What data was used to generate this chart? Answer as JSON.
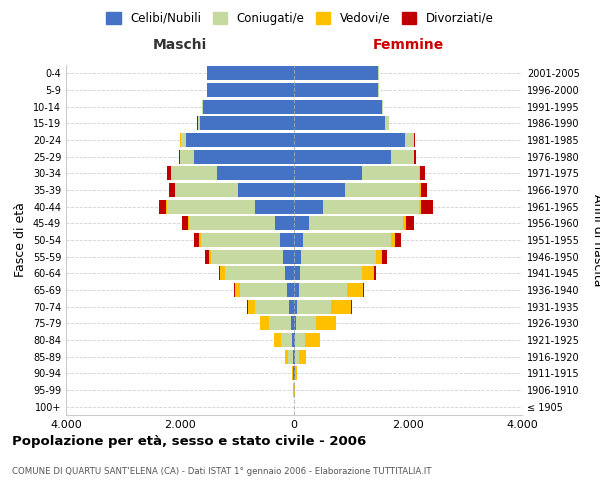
{
  "age_groups": [
    "100+",
    "95-99",
    "90-94",
    "85-89",
    "80-84",
    "75-79",
    "70-74",
    "65-69",
    "60-64",
    "55-59",
    "50-54",
    "45-49",
    "40-44",
    "35-39",
    "30-34",
    "25-29",
    "20-24",
    "15-19",
    "10-14",
    "5-9",
    "0-4"
  ],
  "birth_years": [
    "≤ 1905",
    "1906-1910",
    "1911-1915",
    "1916-1920",
    "1921-1925",
    "1926-1930",
    "1931-1935",
    "1936-1940",
    "1941-1945",
    "1946-1950",
    "1951-1955",
    "1956-1960",
    "1961-1965",
    "1966-1970",
    "1971-1975",
    "1976-1980",
    "1981-1985",
    "1986-1990",
    "1991-1995",
    "1996-2000",
    "2001-2005"
  ],
  "males": {
    "celibi": [
      2,
      4,
      10,
      20,
      30,
      50,
      80,
      120,
      160,
      200,
      240,
      340,
      680,
      980,
      1350,
      1750,
      1900,
      1650,
      1600,
      1520,
      1530
    ],
    "coniugati": [
      1,
      3,
      15,
      80,
      200,
      380,
      600,
      820,
      1050,
      1250,
      1400,
      1500,
      1550,
      1100,
      800,
      250,
      90,
      40,
      10,
      5,
      3
    ],
    "vedovi": [
      0,
      2,
      10,
      50,
      120,
      160,
      130,
      100,
      80,
      50,
      30,
      20,
      10,
      5,
      5,
      5,
      3,
      2,
      1,
      1,
      0
    ],
    "divorziati": [
      0,
      0,
      0,
      0,
      0,
      5,
      10,
      15,
      30,
      60,
      90,
      110,
      130,
      100,
      70,
      20,
      10,
      5,
      2,
      1,
      0
    ]
  },
  "females": {
    "nubili": [
      2,
      5,
      10,
      15,
      20,
      30,
      50,
      80,
      100,
      130,
      160,
      260,
      500,
      900,
      1200,
      1700,
      1950,
      1600,
      1550,
      1480,
      1480
    ],
    "coniugate": [
      1,
      3,
      15,
      70,
      180,
      350,
      600,
      850,
      1100,
      1300,
      1550,
      1650,
      1700,
      1300,
      1000,
      400,
      150,
      60,
      15,
      5,
      3
    ],
    "vedove": [
      1,
      5,
      30,
      120,
      250,
      350,
      350,
      280,
      200,
      120,
      70,
      50,
      30,
      20,
      15,
      10,
      5,
      3,
      2,
      1,
      0
    ],
    "divorziate": [
      0,
      0,
      0,
      0,
      5,
      10,
      15,
      20,
      40,
      80,
      100,
      150,
      200,
      120,
      80,
      25,
      10,
      5,
      2,
      1,
      0
    ]
  },
  "colors": {
    "celibi": "#4472c4",
    "coniugati": "#c5d9a0",
    "vedovi": "#ffc000",
    "divorziati": "#c00000"
  },
  "xlim": 4000,
  "title": "Popolazione per età, sesso e stato civile - 2006",
  "subtitle": "COMUNE DI QUARTU SANT'ELENA (CA) - Dati ISTAT 1° gennaio 2006 - Elaborazione TUTTITALIA.IT",
  "ylabel_left": "Fasce di età",
  "ylabel_right": "Anni di nascita",
  "xlabel_maschi": "Maschi",
  "xlabel_femmine": "Femmine",
  "legend_labels": [
    "Celibi/Nubili",
    "Coniugati/e",
    "Vedovi/e",
    "Divorziati/e"
  ],
  "background_color": "#ffffff",
  "grid_color": "#cccccc"
}
